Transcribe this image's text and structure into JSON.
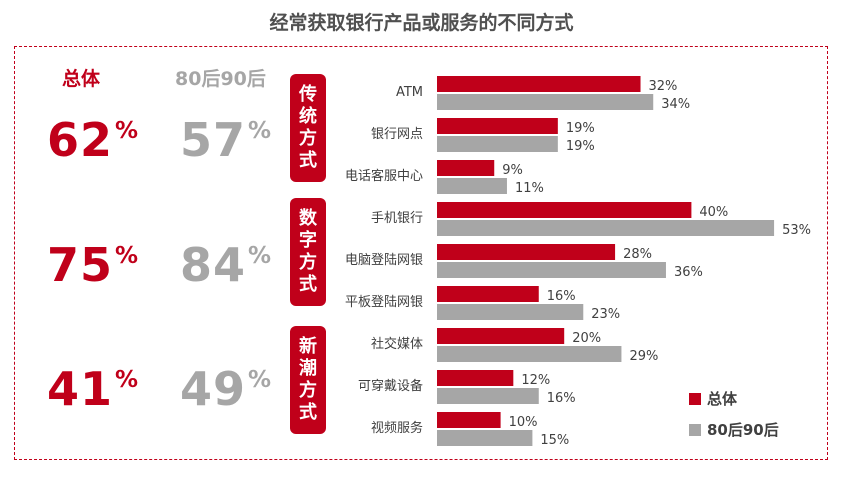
{
  "title": "经常获取银行产品或服务的不同方式",
  "summary_headers": {
    "total": "总体",
    "gen": "80后90后"
  },
  "groups": [
    {
      "tag": [
        "传",
        "统",
        "方",
        "式"
      ],
      "total": "62",
      "gen": "57",
      "pct": "%"
    },
    {
      "tag": [
        "数",
        "字",
        "方",
        "式"
      ],
      "total": "75",
      "gen": "84",
      "pct": "%"
    },
    {
      "tag": [
        "新",
        "潮",
        "方",
        "式"
      ],
      "total": "41",
      "gen": "49",
      "pct": "%"
    }
  ],
  "legend": {
    "total": "总体",
    "gen": "80后90后"
  },
  "colors": {
    "total": "#c0001a",
    "gen": "#a6a6a6"
  },
  "chart_data": {
    "type": "bar",
    "orientation": "horizontal",
    "title": "经常获取银行产品或服务的不同方式",
    "categories": [
      "ATM",
      "银行网点",
      "电话客服中心",
      "手机银行",
      "电脑登陆网银",
      "平板登陆网银",
      "社交媒体",
      "可穿戴设备",
      "视频服务"
    ],
    "series": [
      {
        "name": "总体",
        "values": [
          32,
          19,
          9,
          40,
          28,
          16,
          20,
          12,
          10
        ],
        "labels": [
          "32%",
          "19%",
          "9%",
          "40%",
          "28%",
          "16%",
          "20%",
          "12%",
          "10%"
        ]
      },
      {
        "name": "80后90后",
        "values": [
          34,
          19,
          11,
          53,
          36,
          23,
          29,
          16,
          15
        ],
        "labels": [
          "34%",
          "19%",
          "11%",
          "53%",
          "36%",
          "23%",
          "29%",
          "16%",
          "15%"
        ]
      }
    ]
  }
}
